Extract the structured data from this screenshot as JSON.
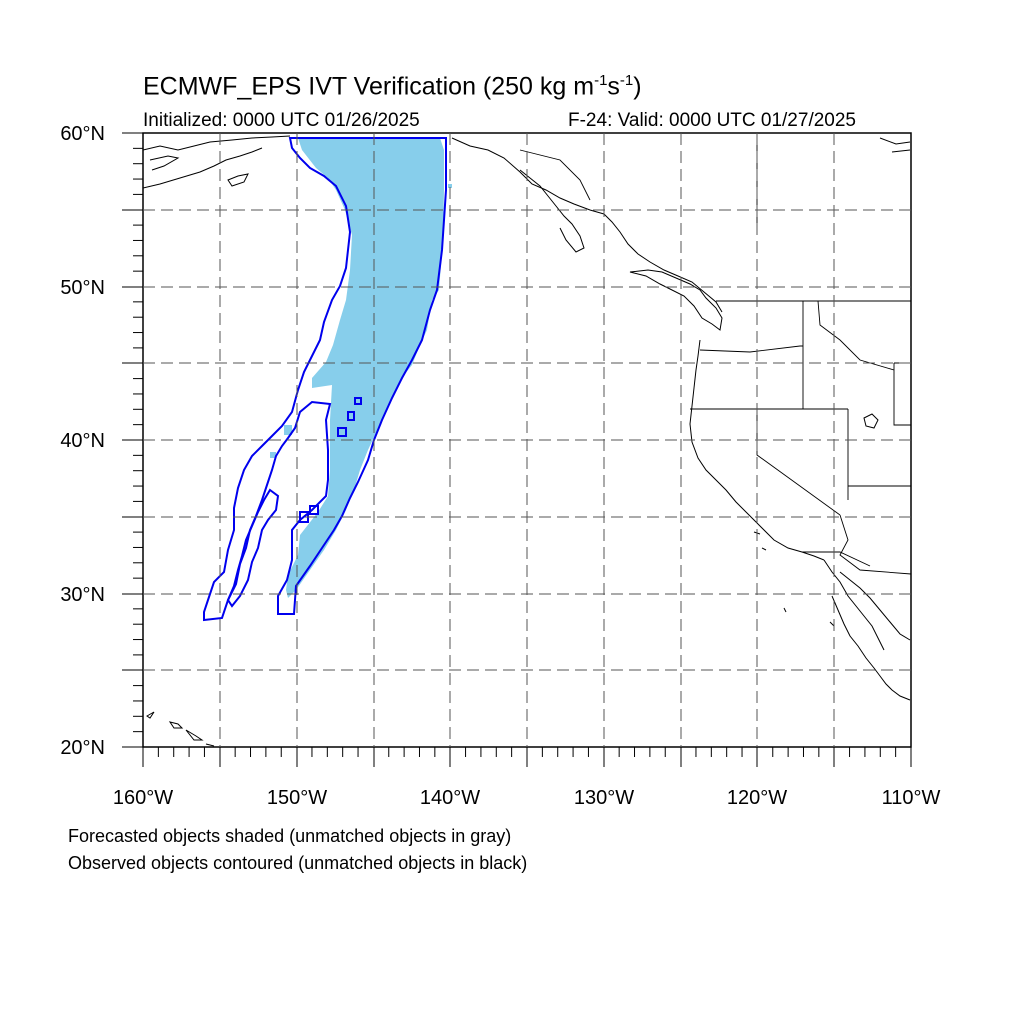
{
  "title": {
    "main": "ECMWF_EPS IVT Verification (250 kg m",
    "sup1": "-1",
    "mid": "s",
    "sup2": "-1",
    "end": ")"
  },
  "initialized": "Initialized: 0000 UTC 01/26/2025",
  "valid": "F-24: Valid: 0000 UTC 01/27/2025",
  "lat_labels": [
    "60°N",
    "50°N",
    "40°N",
    "30°N",
    "20°N"
  ],
  "lon_labels": [
    "160°W",
    "150°W",
    "140°W",
    "130°W",
    "120°W",
    "110°W"
  ],
  "captions": [
    "Forecasted objects shaded (unmatched objects in gray)",
    "Observed objects contoured (unmatched objects in black)"
  ],
  "colors": {
    "forecast_fill": "#87ceeb",
    "observed_contour": "#0000ee",
    "coastline": "#000000",
    "grid": "#333333"
  },
  "map": {
    "projection": "cylindrical equidistant",
    "lon_range": [
      -160,
      -110
    ],
    "lat_range": [
      20,
      60
    ],
    "grid_interval_deg": 5,
    "minor_tick_interval_deg": 1
  }
}
